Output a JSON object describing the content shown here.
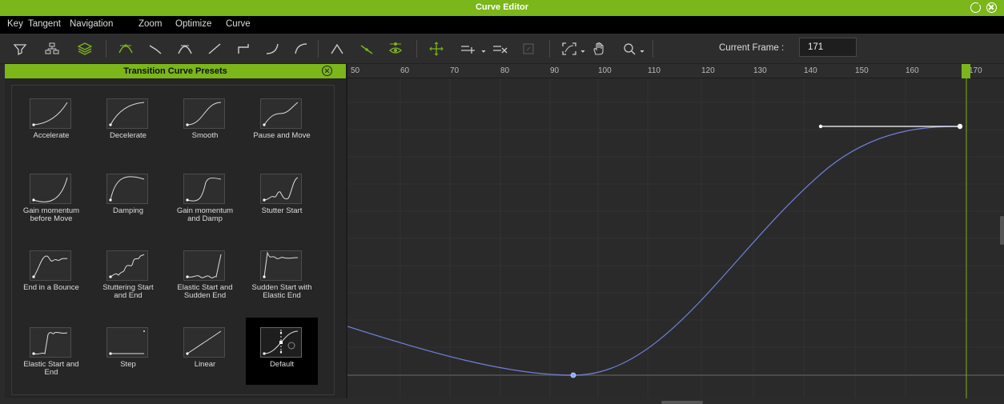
{
  "window": {
    "title": "Curve Editor"
  },
  "menu": [
    "Key",
    "Tangent",
    "Navigation",
    "Zoom",
    "Optimize",
    "Curve"
  ],
  "toolbar": {
    "current_frame_label": "Current Frame :",
    "current_frame_value": "171"
  },
  "presets_panel": {
    "title": "Transition Curve Presets",
    "presets": [
      {
        "label": "Accelerate",
        "icon": "accelerate-curve"
      },
      {
        "label": "Decelerate",
        "icon": "decelerate-curve"
      },
      {
        "label": "Smooth",
        "icon": "smooth-curve"
      },
      {
        "label": "Pause and Move",
        "icon": "pause-and-move-curve"
      },
      {
        "label": "Gain momentum\nbefore Move",
        "icon": "gain-momentum-curve"
      },
      {
        "label": "Damping",
        "icon": "damping-curve"
      },
      {
        "label": "Gain momentum\nand Damp",
        "icon": "gain-momentum-and-damp-curve"
      },
      {
        "label": "Stutter Start",
        "icon": "stutter-start-curve"
      },
      {
        "label": "End in a Bounce",
        "icon": "end-in-bounce-curve"
      },
      {
        "label": "Stuttering Start\nand End",
        "icon": "stuttering-start-and-end-curve"
      },
      {
        "label": "Elastic Start and\nSudden End",
        "icon": "elastic-start-sudden-end-curve"
      },
      {
        "label": "Sudden Start with\nElastic End",
        "icon": "sudden-start-elastic-end-curve"
      },
      {
        "label": "Elastic Start and\nEnd",
        "icon": "elastic-start-and-end-curve"
      },
      {
        "label": "Step",
        "icon": "step-curve"
      },
      {
        "label": "Linear",
        "icon": "linear-curve"
      },
      {
        "label": "Default",
        "icon": "default-curve"
      }
    ],
    "selected": "Default"
  },
  "timeline": {
    "ruler_ticks": [
      "50",
      "60",
      "70",
      "80",
      "90",
      "100",
      "110",
      "120",
      "130",
      "140",
      "150",
      "160",
      "170"
    ],
    "current_frame": 171,
    "colors": {
      "accent": "#7bb61a",
      "curve": "#6f80d8",
      "tangent": "#ffffff",
      "key_selected": "#8aa8ff"
    }
  }
}
